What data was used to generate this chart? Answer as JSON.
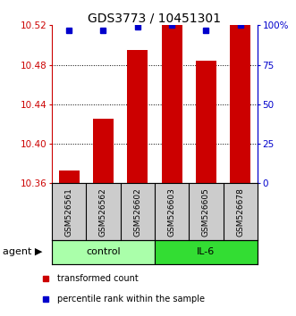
{
  "title": "GDS3773 / 10451301",
  "samples": [
    "GSM526561",
    "GSM526562",
    "GSM526602",
    "GSM526603",
    "GSM526605",
    "GSM526678"
  ],
  "transformed_counts": [
    10.373,
    10.425,
    10.495,
    10.52,
    10.484,
    10.52
  ],
  "percentile_ranks": [
    97,
    97,
    99,
    100,
    97,
    100
  ],
  "ylim_left": [
    10.36,
    10.52
  ],
  "yticks_left": [
    10.36,
    10.4,
    10.44,
    10.48,
    10.52
  ],
  "ylim_right": [
    0,
    100
  ],
  "yticks_right": [
    0,
    25,
    50,
    75,
    100
  ],
  "yticklabels_right": [
    "0",
    "25",
    "50",
    "75",
    "100%"
  ],
  "grid_values": [
    10.4,
    10.44,
    10.48
  ],
  "groups": [
    {
      "label": "control",
      "indices": [
        0,
        1,
        2
      ],
      "color": "#aaffaa"
    },
    {
      "label": "IL-6",
      "indices": [
        3,
        4,
        5
      ],
      "color": "#33dd33"
    }
  ],
  "bar_color": "#cc0000",
  "marker_color": "#0000cc",
  "bar_width": 0.6,
  "sample_box_color": "#cccccc",
  "legend_items": [
    {
      "label": "transformed count",
      "color": "#cc0000"
    },
    {
      "label": "percentile rank within the sample",
      "color": "#0000cc"
    }
  ],
  "agent_label": "agent ▶",
  "left_axis_color": "#cc0000",
  "right_axis_color": "#0000cc",
  "title_fontsize": 10
}
